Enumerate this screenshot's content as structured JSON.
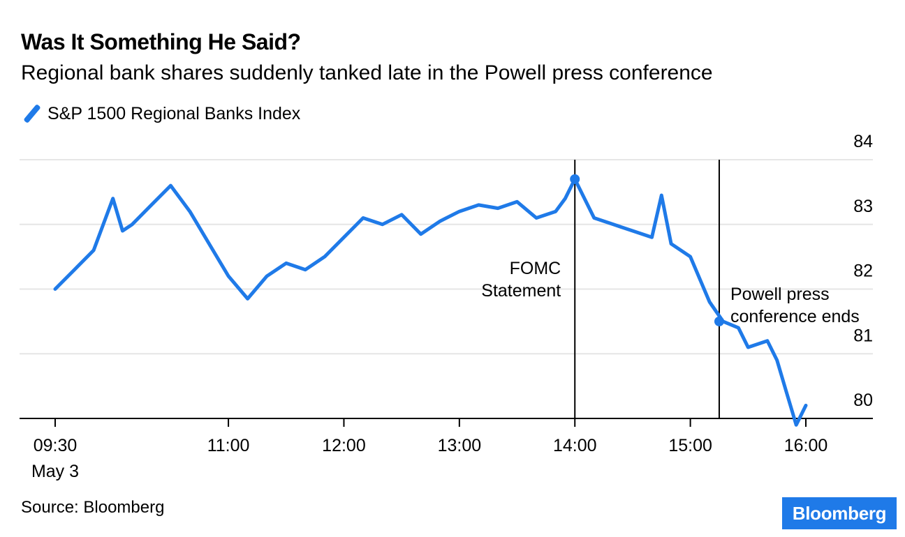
{
  "title": "Was It Something He Said?",
  "subtitle": "Regional bank shares suddenly tanked late in the Powell press conference",
  "source": "Source: Bloomberg",
  "logo": "Bloomberg",
  "colors": {
    "line": "#1f7ae8",
    "grid": "#e6e6e6",
    "axis": "#000000"
  },
  "chart_data": {
    "type": "line",
    "series": [
      {
        "name": "S&P 1500 Regional Banks Index",
        "x": [
          "09:30",
          "09:40",
          "09:50",
          "10:00",
          "10:05",
          "10:10",
          "10:20",
          "10:30",
          "10:40",
          "10:50",
          "11:00",
          "11:10",
          "11:20",
          "11:30",
          "11:40",
          "11:50",
          "12:00",
          "12:10",
          "12:20",
          "12:30",
          "12:40",
          "12:50",
          "13:00",
          "13:10",
          "13:20",
          "13:30",
          "13:40",
          "13:50",
          "13:55",
          "14:00",
          "14:10",
          "14:20",
          "14:30",
          "14:40",
          "14:45",
          "14:50",
          "15:00",
          "15:10",
          "15:17",
          "15:25",
          "15:30",
          "15:40",
          "15:45",
          "15:50",
          "15:53",
          "15:55",
          "16:00"
        ],
        "values": [
          82.0,
          82.3,
          82.6,
          83.4,
          82.9,
          83.0,
          83.3,
          83.6,
          83.2,
          82.7,
          82.2,
          81.85,
          82.2,
          82.4,
          82.3,
          82.5,
          82.8,
          83.1,
          83.0,
          83.15,
          82.85,
          83.05,
          83.2,
          83.3,
          83.25,
          83.35,
          83.1,
          83.2,
          83.4,
          83.7,
          83.1,
          83.0,
          82.9,
          82.8,
          83.45,
          82.7,
          82.5,
          81.8,
          81.5,
          81.4,
          81.1,
          81.2,
          80.9,
          80.4,
          80.1,
          79.9,
          80.2
        ]
      }
    ],
    "ylim": [
      79.8,
      84
    ],
    "yticks": [
      80,
      81,
      82,
      83,
      84
    ],
    "xticks": [
      {
        "x": "09:30",
        "label": "09:30",
        "sublabel": "May 3"
      },
      {
        "x": "11:00",
        "label": "11:00"
      },
      {
        "x": "12:00",
        "label": "12:00"
      },
      {
        "x": "13:00",
        "label": "13:00"
      },
      {
        "x": "14:00",
        "label": "14:00"
      },
      {
        "x": "15:00",
        "label": "15:00"
      },
      {
        "x": "16:00",
        "label": "16:00"
      }
    ],
    "annotations": [
      {
        "x": "14:00",
        "label_lines": [
          "FOMC",
          "Statement"
        ],
        "side": "left",
        "marker_value": 83.7
      },
      {
        "x": "15:15",
        "label_lines": [
          "Powell press",
          "conference ends"
        ],
        "side": "right",
        "marker_value": 81.5
      }
    ],
    "grid": true
  }
}
